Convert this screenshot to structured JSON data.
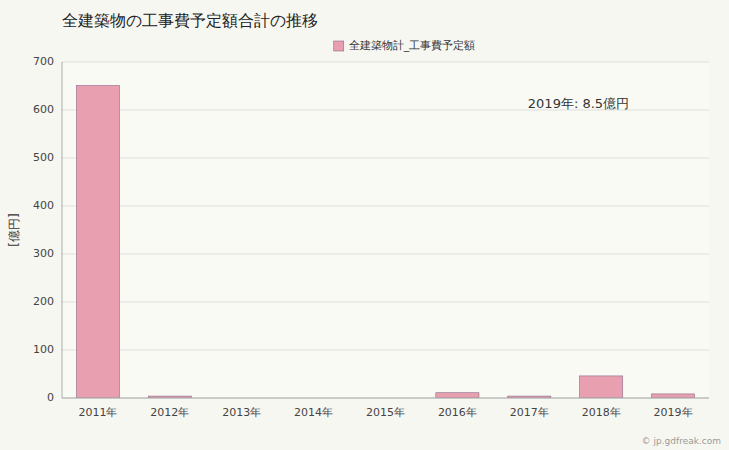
{
  "chart_data": {
    "type": "bar",
    "title": "全建築物の工事費予定額合計の推移",
    "ylabel": "[億円]",
    "annotations": [
      "2019年: 8.5億円",
      "© jp.gdfreak.com"
    ],
    "categories": [
      "2011年",
      "2012年",
      "2013年",
      "2014年",
      "2015年",
      "2016年",
      "2017年",
      "2018年",
      "2019年"
    ],
    "series": [
      {
        "name": "全建築物計_工事費予定額",
        "color": "#e8a0b0",
        "values": [
          651,
          4,
          0,
          0,
          0,
          11,
          4,
          46,
          8.5
        ]
      }
    ],
    "ylim": [
      0,
      700
    ],
    "yticks": [
      0,
      100,
      200,
      300,
      400,
      500,
      600,
      700
    ],
    "grid": true,
    "legend": "top"
  }
}
